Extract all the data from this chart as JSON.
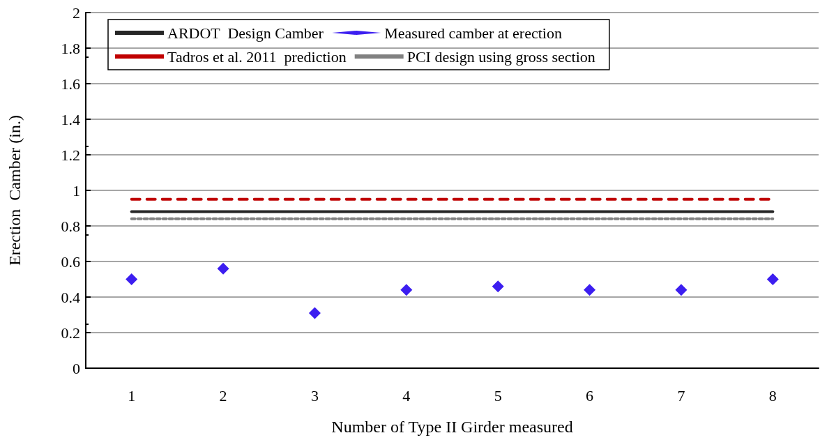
{
  "chart_data": {
    "type": "scatter",
    "xlabel": "Number of Type II Girder measured",
    "ylabel": "Erection  Camber (in.)",
    "xlim": [
      0.5,
      8.5
    ],
    "xticks": [
      1,
      2,
      3,
      4,
      5,
      6,
      7,
      8
    ],
    "ylim": [
      0,
      2
    ],
    "yticks": [
      0,
      0.2,
      0.4,
      0.6,
      0.8,
      1,
      1.2,
      1.4,
      1.6,
      1.8,
      2
    ],
    "grid": "y",
    "legend": "top",
    "series": [
      {
        "name": "ARDOT  Design Camber",
        "type": "line",
        "color": "#262626",
        "x": [
          1,
          8
        ],
        "values": [
          0.88,
          0.88
        ],
        "marker": "none",
        "line_style": "solid"
      },
      {
        "name": "Measured camber at erection",
        "color": "#3c1ef0",
        "x": [
          1,
          2,
          3,
          4,
          5,
          6,
          7,
          8
        ],
        "values": [
          0.5,
          0.56,
          0.31,
          0.44,
          0.46,
          0.44,
          0.44,
          0.5
        ],
        "marker": "diamond"
      },
      {
        "name": "Tadros et al. 2011  prediction",
        "type": "line",
        "color": "#c00000",
        "x": [
          1,
          8
        ],
        "values": [
          0.95,
          0.95
        ],
        "marker": "none",
        "line_style": "dashed"
      },
      {
        "name": "PCI design using gross section",
        "type": "line",
        "color": "#808080",
        "x": [
          1,
          8
        ],
        "values": [
          0.84,
          0.84
        ],
        "marker": "none",
        "line_style": "dotted"
      }
    ]
  }
}
